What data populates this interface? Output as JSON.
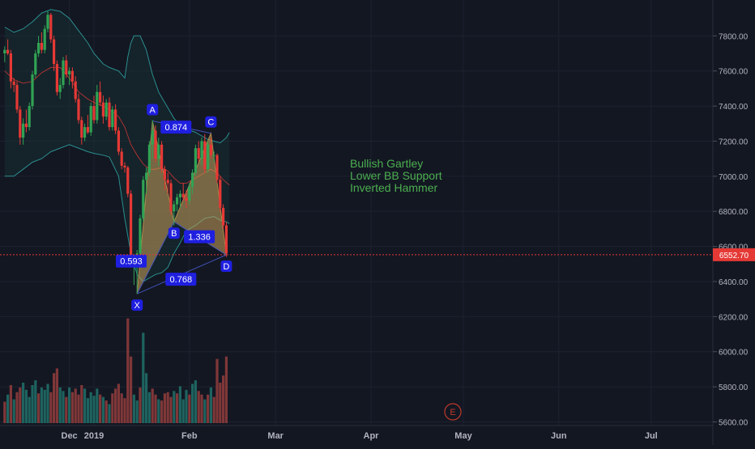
{
  "chart_data": {
    "type": "candlestick",
    "price_axis": {
      "ylim": [
        5550,
        7950
      ],
      "ticks": [
        5600,
        5800,
        6000,
        6200,
        6400,
        6600,
        6800,
        7000,
        7200,
        7400,
        7600,
        7800
      ],
      "tick_labels": [
        "5600.00",
        "5800.00",
        "6000.00",
        "6200.00",
        "6400.00",
        "6600.00",
        "6800.00",
        "7000.00",
        "7200.00",
        "7400.00",
        "7600.00",
        "7800.00"
      ]
    },
    "time_axis": {
      "labels": [
        {
          "text": "Dec",
          "day": -8
        },
        {
          "text": "2019",
          "day": 0
        },
        {
          "text": "Feb",
          "day": 31
        },
        {
          "text": "Mar",
          "day": 59
        },
        {
          "text": "Apr",
          "day": 90
        },
        {
          "text": "May",
          "day": 120
        },
        {
          "text": "Jun",
          "day": 151
        },
        {
          "text": "Jul",
          "day": 181
        }
      ]
    },
    "current_price": {
      "label": "6552.70",
      "value": 6552.7,
      "color": "#e53935"
    },
    "colors": {
      "up": "#26a69a",
      "up_body": "#2e7d32",
      "down": "#e53935",
      "bb_band": "#2a8f8f",
      "bb_basis": "#a83232",
      "pattern_fill": "#c9a15a",
      "pattern_line": "#3f51b5",
      "text_green": "#4caf50",
      "label_bg": "#1f1fe0"
    },
    "candles": [
      [
        -29,
        7700,
        7740,
        7650,
        7720
      ],
      [
        -28,
        7720,
        7780,
        7690,
        7700
      ],
      [
        -27,
        7700,
        7720,
        7500,
        7540
      ],
      [
        -26,
        7540,
        7560,
        7480,
        7520
      ],
      [
        -25,
        7520,
        7540,
        7360,
        7380
      ],
      [
        -24,
        7380,
        7400,
        7180,
        7220
      ],
      [
        -23,
        7220,
        7330,
        7180,
        7300
      ],
      [
        -22,
        7300,
        7380,
        7250,
        7280
      ],
      [
        -21,
        7280,
        7420,
        7260,
        7400
      ],
      [
        -20,
        7400,
        7600,
        7380,
        7580
      ],
      [
        -19,
        7580,
        7720,
        7560,
        7700
      ],
      [
        -18,
        7700,
        7800,
        7680,
        7760
      ],
      [
        -17,
        7760,
        7820,
        7700,
        7720
      ],
      [
        -16,
        7720,
        7860,
        7700,
        7840
      ],
      [
        -15,
        7840,
        7940,
        7820,
        7920
      ],
      [
        -14,
        7920,
        7930,
        7760,
        7780
      ],
      [
        -13,
        7780,
        7800,
        7600,
        7640
      ],
      [
        -12,
        7640,
        7660,
        7460,
        7480
      ],
      [
        -11,
        7480,
        7560,
        7440,
        7520
      ],
      [
        -10,
        7520,
        7680,
        7500,
        7660
      ],
      [
        -9,
        7660,
        7690,
        7560,
        7580
      ],
      [
        -8,
        7580,
        7620,
        7520,
        7600
      ],
      [
        -7,
        7600,
        7620,
        7500,
        7540
      ],
      [
        -6,
        7540,
        7570,
        7420,
        7440
      ],
      [
        -5,
        7440,
        7470,
        7300,
        7320
      ],
      [
        -4,
        7320,
        7340,
        7180,
        7220
      ],
      [
        -3,
        7220,
        7300,
        7200,
        7280
      ],
      [
        -2,
        7280,
        7350,
        7240,
        7250
      ],
      [
        -1,
        7250,
        7420,
        7230,
        7400
      ],
      [
        0,
        7400,
        7460,
        7300,
        7320
      ],
      [
        1,
        7320,
        7520,
        7300,
        7480
      ],
      [
        2,
        7480,
        7540,
        7400,
        7420
      ],
      [
        3,
        7420,
        7460,
        7300,
        7340
      ],
      [
        4,
        7340,
        7440,
        7320,
        7420
      ],
      [
        5,
        7420,
        7450,
        7260,
        7280
      ],
      [
        6,
        7280,
        7400,
        7260,
        7380
      ],
      [
        7,
        7380,
        7410,
        7240,
        7260
      ],
      [
        8,
        7260,
        7280,
        7120,
        7140
      ],
      [
        9,
        7140,
        7160,
        7040,
        7060
      ],
      [
        10,
        7060,
        7080,
        7020,
        7050
      ],
      [
        11,
        7050,
        7060,
        6880,
        6900
      ],
      [
        12,
        6900,
        6920,
        6480,
        6500
      ],
      [
        13,
        6500,
        6540,
        6380,
        6520
      ],
      [
        14,
        6520,
        6580,
        6330,
        6560
      ],
      [
        15,
        6560,
        6780,
        6520,
        6760
      ],
      [
        16,
        6760,
        7000,
        6740,
        6980
      ],
      [
        17,
        6980,
        7050,
        6900,
        7020
      ],
      [
        18,
        7020,
        7200,
        7000,
        7180
      ],
      [
        19,
        7180,
        7320,
        7100,
        7260
      ],
      [
        20,
        7260,
        7290,
        7080,
        7100
      ],
      [
        21,
        7100,
        7220,
        7060,
        7180
      ],
      [
        22,
        7180,
        7200,
        7020,
        7040
      ],
      [
        23,
        7040,
        7060,
        6920,
        6980
      ],
      [
        24,
        6980,
        7020,
        6900,
        6960
      ],
      [
        25,
        6960,
        6980,
        6780,
        6800
      ],
      [
        26,
        6800,
        6860,
        6720,
        6840
      ],
      [
        27,
        6840,
        6900,
        6800,
        6880
      ],
      [
        28,
        6880,
        6920,
        6820,
        6900
      ],
      [
        29,
        6900,
        6960,
        6860,
        6880
      ],
      [
        30,
        6880,
        6920,
        6820,
        6860
      ],
      [
        31,
        6860,
        6960,
        6840,
        6940
      ],
      [
        32,
        6940,
        7040,
        6900,
        7020
      ],
      [
        33,
        7020,
        7180,
        7000,
        7160
      ],
      [
        34,
        7160,
        7200,
        7080,
        7100
      ],
      [
        35,
        7100,
        7220,
        7060,
        7200
      ],
      [
        36,
        7200,
        7240,
        7020,
        7040
      ],
      [
        37,
        7040,
        7200,
        7020,
        7180
      ],
      [
        38,
        7180,
        7220,
        7100,
        7120
      ],
      [
        39,
        7120,
        7140,
        7080,
        7120
      ],
      [
        40,
        7120,
        7130,
        6960,
        6980
      ],
      [
        41,
        6980,
        7000,
        6800,
        6820
      ],
      [
        42,
        6820,
        6840,
        6700,
        6720
      ],
      [
        43,
        6720,
        6740,
        6540,
        6560
      ]
    ],
    "volumes": [
      [
        -29,
        180,
        1
      ],
      [
        -28,
        240,
        0
      ],
      [
        -27,
        320,
        1
      ],
      [
        -26,
        200,
        0
      ],
      [
        -25,
        260,
        1
      ],
      [
        -24,
        300,
        1
      ],
      [
        -23,
        340,
        0
      ],
      [
        -22,
        280,
        0
      ],
      [
        -21,
        220,
        0
      ],
      [
        -20,
        320,
        0
      ],
      [
        -19,
        360,
        0
      ],
      [
        -18,
        250,
        1
      ],
      [
        -17,
        300,
        0
      ],
      [
        -16,
        280,
        0
      ],
      [
        -15,
        330,
        0
      ],
      [
        -14,
        260,
        1
      ],
      [
        -13,
        420,
        1
      ],
      [
        -12,
        460,
        1
      ],
      [
        -11,
        300,
        0
      ],
      [
        -10,
        270,
        0
      ],
      [
        -9,
        220,
        1
      ],
      [
        -8,
        300,
        0
      ],
      [
        -7,
        260,
        1
      ],
      [
        -6,
        290,
        1
      ],
      [
        -5,
        240,
        1
      ],
      [
        -4,
        320,
        1
      ],
      [
        -3,
        290,
        0
      ],
      [
        -2,
        210,
        0
      ],
      [
        -1,
        260,
        0
      ],
      [
        0,
        230,
        0
      ],
      [
        1,
        290,
        0
      ],
      [
        2,
        240,
        1
      ],
      [
        3,
        220,
        0
      ],
      [
        4,
        190,
        1
      ],
      [
        5,
        160,
        0
      ],
      [
        6,
        250,
        1
      ],
      [
        7,
        290,
        1
      ],
      [
        8,
        330,
        1
      ],
      [
        9,
        250,
        1
      ],
      [
        10,
        210,
        1
      ],
      [
        11,
        880,
        1
      ],
      [
        12,
        560,
        1
      ],
      [
        13,
        240,
        0
      ],
      [
        14,
        190,
        0
      ],
      [
        15,
        300,
        1
      ],
      [
        16,
        760,
        0
      ],
      [
        17,
        420,
        0
      ],
      [
        18,
        260,
        0
      ],
      [
        19,
        290,
        1
      ],
      [
        20,
        240,
        1
      ],
      [
        21,
        200,
        0
      ],
      [
        22,
        190,
        1
      ],
      [
        23,
        250,
        1
      ],
      [
        24,
        260,
        1
      ],
      [
        25,
        220,
        1
      ],
      [
        26,
        270,
        0
      ],
      [
        27,
        250,
        1
      ],
      [
        28,
        310,
        0
      ],
      [
        29,
        200,
        0
      ],
      [
        30,
        280,
        0
      ],
      [
        31,
        240,
        1
      ],
      [
        32,
        330,
        0
      ],
      [
        33,
        360,
        0
      ],
      [
        34,
        270,
        1
      ],
      [
        35,
        240,
        1
      ],
      [
        36,
        200,
        0
      ],
      [
        37,
        240,
        1
      ],
      [
        38,
        300,
        0
      ],
      [
        39,
        220,
        1
      ],
      [
        40,
        540,
        1
      ],
      [
        41,
        340,
        1
      ],
      [
        42,
        400,
        1
      ],
      [
        43,
        560,
        1
      ]
    ],
    "bb_upper": [
      [
        -29,
        7850
      ],
      [
        -26,
        7820
      ],
      [
        -23,
        7840
      ],
      [
        -20,
        7880
      ],
      [
        -17,
        7930
      ],
      [
        -14,
        7950
      ],
      [
        -11,
        7940
      ],
      [
        -8,
        7900
      ],
      [
        -5,
        7830
      ],
      [
        -2,
        7760
      ],
      [
        0,
        7700
      ],
      [
        3,
        7640
      ],
      [
        5,
        7620
      ],
      [
        8,
        7600
      ],
      [
        10,
        7560
      ],
      [
        11,
        7680
      ],
      [
        12,
        7760
      ],
      [
        13,
        7800
      ],
      [
        15,
        7800
      ],
      [
        17,
        7720
      ],
      [
        19,
        7580
      ],
      [
        21,
        7480
      ],
      [
        23,
        7420
      ],
      [
        26,
        7330
      ],
      [
        28,
        7290
      ],
      [
        30,
        7270
      ],
      [
        33,
        7250
      ],
      [
        35,
        7230
      ],
      [
        37,
        7210
      ],
      [
        39,
        7200
      ],
      [
        41,
        7190
      ],
      [
        43,
        7220
      ],
      [
        44,
        7250
      ]
    ],
    "bb_basis": [
      [
        -29,
        7600
      ],
      [
        -26,
        7550
      ],
      [
        -23,
        7530
      ],
      [
        -20,
        7540
      ],
      [
        -17,
        7590
      ],
      [
        -14,
        7620
      ],
      [
        -11,
        7620
      ],
      [
        -8,
        7560
      ],
      [
        -5,
        7480
      ],
      [
        -2,
        7440
      ],
      [
        0,
        7420
      ],
      [
        3,
        7400
      ],
      [
        5,
        7380
      ],
      [
        8,
        7340
      ],
      [
        10,
        7280
      ],
      [
        12,
        7180
      ],
      [
        14,
        7120
      ],
      [
        16,
        7070
      ],
      [
        18,
        7040
      ],
      [
        20,
        7040
      ],
      [
        22,
        7050
      ],
      [
        24,
        7030
      ],
      [
        26,
        6990
      ],
      [
        28,
        6960
      ],
      [
        30,
        6960
      ],
      [
        33,
        6990
      ],
      [
        36,
        7020
      ],
      [
        38,
        7040
      ],
      [
        40,
        7020
      ],
      [
        42,
        6980
      ],
      [
        44,
        6950
      ]
    ],
    "bb_lower": [
      [
        -29,
        7000
      ],
      [
        -26,
        7000
      ],
      [
        -23,
        7040
      ],
      [
        -20,
        7080
      ],
      [
        -17,
        7100
      ],
      [
        -14,
        7140
      ],
      [
        -11,
        7160
      ],
      [
        -8,
        7180
      ],
      [
        -5,
        7160
      ],
      [
        -2,
        7140
      ],
      [
        0,
        7130
      ],
      [
        3,
        7120
      ],
      [
        5,
        7110
      ],
      [
        8,
        7000
      ],
      [
        10,
        6760
      ],
      [
        12,
        6560
      ],
      [
        14,
        6440
      ],
      [
        16,
        6400
      ],
      [
        18,
        6420
      ],
      [
        20,
        6440
      ],
      [
        22,
        6450
      ],
      [
        24,
        6480
      ],
      [
        26,
        6560
      ],
      [
        28,
        6620
      ],
      [
        30,
        6690
      ],
      [
        33,
        6720
      ],
      [
        36,
        6760
      ],
      [
        39,
        6770
      ],
      [
        41,
        6750
      ],
      [
        43,
        6740
      ],
      [
        44,
        6730
      ]
    ],
    "pattern": {
      "points": [
        {
          "name": "X",
          "day": 14,
          "price": 6330
        },
        {
          "name": "A",
          "day": 19,
          "price": 7315
        },
        {
          "name": "B",
          "day": 26,
          "price": 6740
        },
        {
          "name": "C",
          "day": 38,
          "price": 7245
        },
        {
          "name": "D",
          "day": 43,
          "price": 6552
        }
      ],
      "ratios": [
        {
          "label": "0.874",
          "anchor": "AC"
        },
        {
          "label": "0.593",
          "anchor": "XB"
        },
        {
          "label": "1.336",
          "anchor": "BD"
        },
        {
          "label": "0.768",
          "anchor": "XD"
        }
      ]
    },
    "annotations": [
      "Bullish Gartley",
      "Lower BB Support",
      "Inverted Hammer"
    ],
    "event_marker": "E"
  }
}
